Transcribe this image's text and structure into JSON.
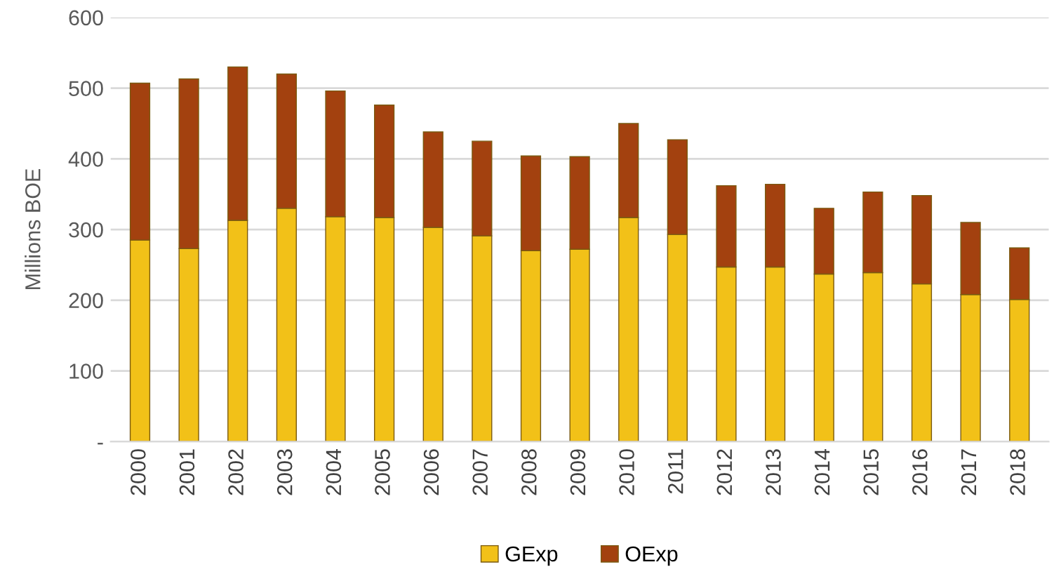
{
  "chart_data": {
    "type": "bar",
    "stacked": true,
    "ylabel": "Millions BOE",
    "categories": [
      "2000",
      "2001",
      "2002",
      "2003",
      "2004",
      "2005",
      "2006",
      "2007",
      "2008",
      "2009",
      "2010",
      "2011",
      "2012",
      "2013",
      "2014",
      "2015",
      "2016",
      "2017",
      "2018"
    ],
    "series": [
      {
        "name": "GExp",
        "color": "#f2c118",
        "values": [
          285,
          273,
          313,
          330,
          318,
          317,
          303,
          291,
          270,
          272,
          317,
          293,
          247,
          247,
          237,
          239,
          223,
          208,
          201
        ]
      },
      {
        "name": "OExp",
        "color": "#a3410f",
        "values": [
          222,
          240,
          217,
          190,
          178,
          159,
          135,
          134,
          134,
          131,
          133,
          134,
          115,
          117,
          93,
          114,
          125,
          102,
          73
        ]
      }
    ],
    "ylim": [
      0,
      600
    ],
    "yticks": [
      {
        "value": 0,
        "label": "-"
      },
      100,
      200,
      300,
      400,
      500,
      600
    ],
    "grid": "y",
    "legend": "bottom"
  }
}
